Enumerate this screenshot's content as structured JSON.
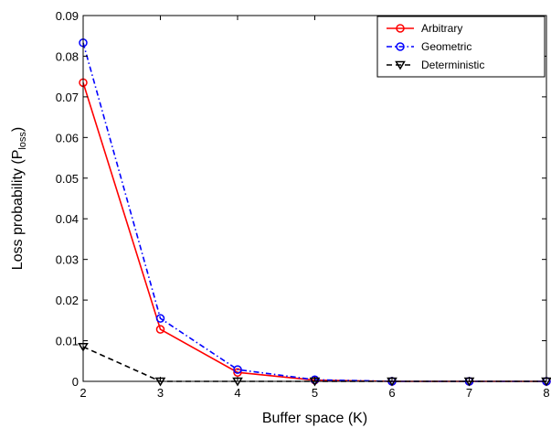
{
  "chart_data": {
    "type": "line",
    "xlabel": "Buffer space (K)",
    "ylabel_main": "Loss probability (P",
    "ylabel_sub": "loss",
    "ylabel_end": ")",
    "xlim": [
      2,
      8
    ],
    "ylim": [
      0,
      0.09
    ],
    "xticks": [
      2,
      3,
      4,
      5,
      6,
      7,
      8
    ],
    "yticks": [
      0,
      0.01,
      0.02,
      0.03,
      0.04,
      0.05,
      0.06,
      0.07,
      0.08,
      0.09
    ],
    "ytick_labels": [
      "0",
      "0.01",
      "0.02",
      "0.03",
      "0.04",
      "0.05",
      "0.06",
      "0.07",
      "0.08",
      "0.09"
    ],
    "grid": false,
    "legend_position": "top-right",
    "x": [
      2,
      3,
      4,
      5,
      6,
      7,
      8
    ],
    "series": [
      {
        "name": "Arbitrary",
        "values": [
          0.0735,
          0.0128,
          0.0022,
          0.0003,
          0.0,
          0.0,
          0.0
        ],
        "color": "#ff0000",
        "dash": "solid",
        "marker": "circle"
      },
      {
        "name": "Geometric",
        "values": [
          0.0833,
          0.0155,
          0.0029,
          0.0004,
          0.0,
          0.0,
          0.0
        ],
        "color": "#0000ff",
        "dash": "dashdot",
        "marker": "circle"
      },
      {
        "name": "Deterministic",
        "values": [
          0.0085,
          0.0,
          0.0,
          0.0,
          0.0,
          0.0,
          0.0
        ],
        "color": "#000000",
        "dash": "dashed",
        "marker": "triangle-down"
      }
    ]
  }
}
